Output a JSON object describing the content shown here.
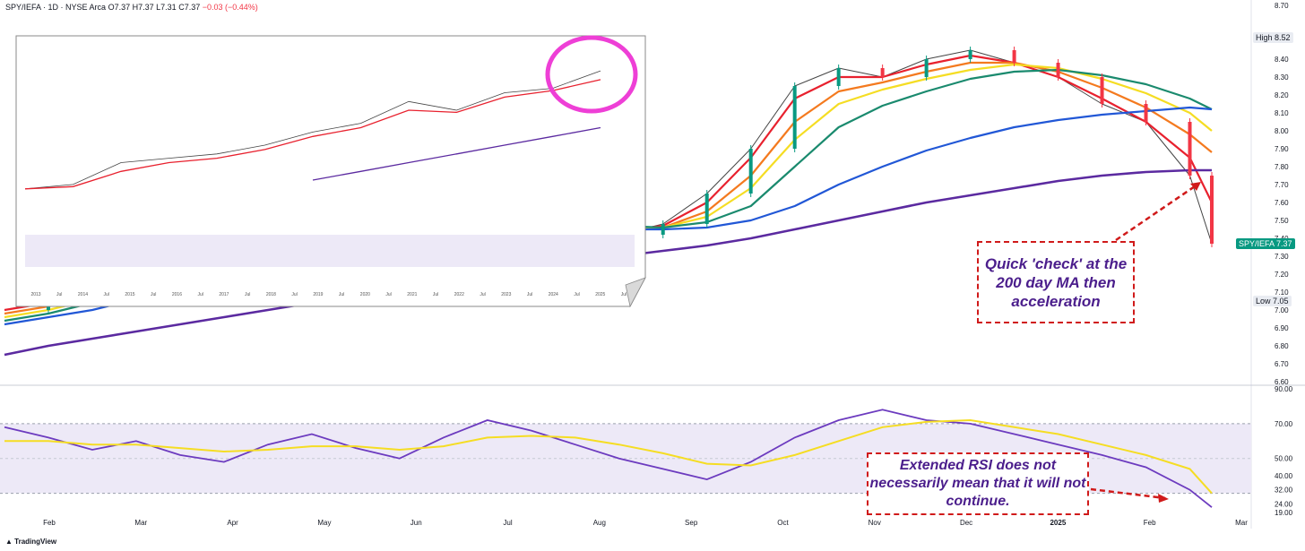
{
  "header": {
    "symbol": "SPY/IEFA · 1D · NYSE Arca",
    "open": "O7.37",
    "high": "H7.37",
    "low": "L7.31",
    "close": "C7.37",
    "change": "−0.03 (−0.44%)"
  },
  "branding": "TradingView",
  "price_tags": {
    "high_label": "High",
    "high_value": "8.52",
    "low_label": "Low",
    "low_value": "7.05",
    "symbol_label": "SPY/IEFA",
    "last_value": "7.37"
  },
  "annotations": {
    "ma_check": "Quick 'check' at the 200 day MA then acceleration",
    "rsi_note": "Extended RSI does not necessarily mean that it will not continue."
  },
  "colors": {
    "up": "#089981",
    "down": "#f23645",
    "ema_fast": "#e8212e",
    "ema_mid": "#f47a1f",
    "ema_slow": "#f5dd23",
    "ma_50": "#1a8a6e",
    "ma_100": "#2157d6",
    "ma_200": "#5b2aa0",
    "rsi": "#6c3bbf",
    "rsi_ma": "#f5dd23",
    "rsi_band": "#ede9f7",
    "callout_border": "#d01a1a",
    "callout_text": "#4b1e8c",
    "circle": "#ee3fd6"
  },
  "chart_data": [
    {
      "type": "line",
      "panel": "price",
      "y_ticks": [
        "8.70",
        "8.52",
        "8.40",
        "8.30",
        "8.20",
        "8.10",
        "8.00",
        "7.90",
        "7.80",
        "7.70",
        "7.60",
        "7.50",
        "7.40",
        "7.30",
        "7.20",
        "7.10",
        "7.00",
        "6.90",
        "6.80",
        "6.70",
        "6.60"
      ],
      "ylim": [
        6.6,
        8.7
      ],
      "x_labels": [
        "Feb",
        "Mar",
        "Apr",
        "May",
        "Jun",
        "Jul",
        "Aug",
        "Sep",
        "Oct",
        "Nov",
        "Dec",
        "2025",
        "Feb",
        "Mar"
      ],
      "x": [
        0,
        10,
        20,
        30,
        40,
        50,
        60,
        70,
        80,
        90,
        100,
        110,
        120,
        130,
        140,
        150,
        160,
        170,
        180,
        190,
        200,
        210,
        220,
        230,
        240,
        250,
        260,
        270,
        275
      ],
      "series": [
        {
          "key": "price",
          "values": [
            7.0,
            7.05,
            7.12,
            7.2,
            7.28,
            7.36,
            7.42,
            7.46,
            7.5,
            7.55,
            7.6,
            7.58,
            7.5,
            7.45,
            7.42,
            7.48,
            7.65,
            7.9,
            8.25,
            8.35,
            8.3,
            8.4,
            8.45,
            8.38,
            8.3,
            8.15,
            8.05,
            7.75,
            7.37
          ]
        },
        {
          "key": "ema_fast",
          "values": [
            7.0,
            7.04,
            7.1,
            7.18,
            7.26,
            7.34,
            7.4,
            7.44,
            7.48,
            7.53,
            7.58,
            7.57,
            7.51,
            7.47,
            7.44,
            7.47,
            7.6,
            7.85,
            8.18,
            8.3,
            8.3,
            8.37,
            8.42,
            8.38,
            8.3,
            8.18,
            8.05,
            7.85,
            7.6
          ]
        },
        {
          "key": "ema_mid",
          "values": [
            6.98,
            7.02,
            7.08,
            7.15,
            7.23,
            7.31,
            7.38,
            7.42,
            7.46,
            7.51,
            7.56,
            7.56,
            7.52,
            7.48,
            7.45,
            7.46,
            7.55,
            7.75,
            8.05,
            8.22,
            8.27,
            8.33,
            8.38,
            8.38,
            8.33,
            8.24,
            8.13,
            7.98,
            7.88
          ]
        },
        {
          "key": "ema_slow",
          "values": [
            6.96,
            7.0,
            7.06,
            7.13,
            7.21,
            7.29,
            7.36,
            7.4,
            7.44,
            7.49,
            7.54,
            7.55,
            7.52,
            7.49,
            7.46,
            7.46,
            7.52,
            7.68,
            7.95,
            8.15,
            8.23,
            8.29,
            8.34,
            8.37,
            8.35,
            8.29,
            8.21,
            8.1,
            8.0
          ]
        },
        {
          "key": "ma_50",
          "values": [
            6.94,
            6.98,
            7.04,
            7.1,
            7.18,
            7.26,
            7.33,
            7.38,
            7.42,
            7.47,
            7.52,
            7.53,
            7.52,
            7.5,
            7.47,
            7.46,
            7.49,
            7.58,
            7.8,
            8.02,
            8.14,
            8.22,
            8.29,
            8.33,
            8.34,
            8.31,
            8.26,
            8.18,
            8.12
          ]
        },
        {
          "key": "ma_100",
          "values": [
            6.92,
            6.96,
            7.0,
            7.06,
            7.13,
            7.2,
            7.27,
            7.32,
            7.37,
            7.41,
            7.45,
            7.47,
            7.47,
            7.46,
            7.45,
            7.45,
            7.46,
            7.5,
            7.58,
            7.7,
            7.8,
            7.89,
            7.96,
            8.02,
            8.06,
            8.09,
            8.11,
            8.13,
            8.12
          ]
        },
        {
          "key": "ma_200",
          "values": [
            6.75,
            6.8,
            6.84,
            6.88,
            6.92,
            6.96,
            7.0,
            7.04,
            7.08,
            7.12,
            7.16,
            7.2,
            7.24,
            7.27,
            7.3,
            7.33,
            7.36,
            7.4,
            7.45,
            7.5,
            7.55,
            7.6,
            7.64,
            7.68,
            7.72,
            7.75,
            7.77,
            7.78,
            7.78
          ]
        }
      ]
    },
    {
      "type": "line",
      "panel": "rsi",
      "y_ticks": [
        "90.00",
        "70.00",
        "50.00",
        "40.00",
        "32.00",
        "24.00",
        "19.00"
      ],
      "ylim": [
        19,
        90
      ],
      "band": [
        30,
        70
      ],
      "x": [
        0,
        10,
        20,
        30,
        40,
        50,
        60,
        70,
        80,
        90,
        100,
        110,
        120,
        130,
        140,
        150,
        160,
        170,
        180,
        190,
        200,
        210,
        220,
        230,
        240,
        250,
        260,
        270,
        275
      ],
      "series": [
        {
          "key": "rsi",
          "values": [
            68,
            62,
            55,
            60,
            52,
            48,
            58,
            64,
            56,
            50,
            62,
            72,
            66,
            58,
            50,
            44,
            38,
            48,
            62,
            72,
            78,
            72,
            70,
            64,
            58,
            52,
            45,
            32,
            22
          ]
        },
        {
          "key": "rsi_ma",
          "values": [
            60,
            60,
            58,
            58,
            56,
            54,
            55,
            57,
            57,
            55,
            57,
            62,
            63,
            62,
            58,
            53,
            47,
            46,
            52,
            60,
            68,
            71,
            72,
            68,
            64,
            58,
            52,
            44,
            30
          ]
        }
      ]
    },
    {
      "type": "line",
      "panel": "inset_weekly",
      "x_labels": [
        "2013",
        "Jul",
        "2014",
        "Jul",
        "2015",
        "Jul",
        "2016",
        "Jul",
        "2017",
        "Jul",
        "2018",
        "Jul",
        "2019",
        "Jul",
        "2020",
        "Jul",
        "2021",
        "Jul",
        "2022",
        "Jul",
        "2023",
        "Jul",
        "2024",
        "Jul",
        "2025",
        "Jul"
      ],
      "x": [
        0,
        1,
        2,
        3,
        4,
        5,
        6,
        7,
        8,
        9,
        10,
        11,
        12
      ],
      "series": [
        {
          "key": "price",
          "values": [
            5.6,
            5.7,
            6.2,
            6.3,
            6.4,
            6.6,
            6.9,
            7.1,
            7.6,
            7.4,
            7.8,
            7.9,
            8.3
          ]
        },
        {
          "key": "ema_fast",
          "values": [
            5.6,
            5.65,
            6.0,
            6.2,
            6.3,
            6.5,
            6.8,
            7.0,
            7.4,
            7.35,
            7.7,
            7.85,
            8.1
          ]
        },
        {
          "key": "ma_200",
          "values": [
            null,
            null,
            null,
            null,
            null,
            null,
            5.8,
            6.0,
            6.2,
            6.4,
            6.6,
            6.8,
            7.0
          ]
        }
      ]
    }
  ]
}
